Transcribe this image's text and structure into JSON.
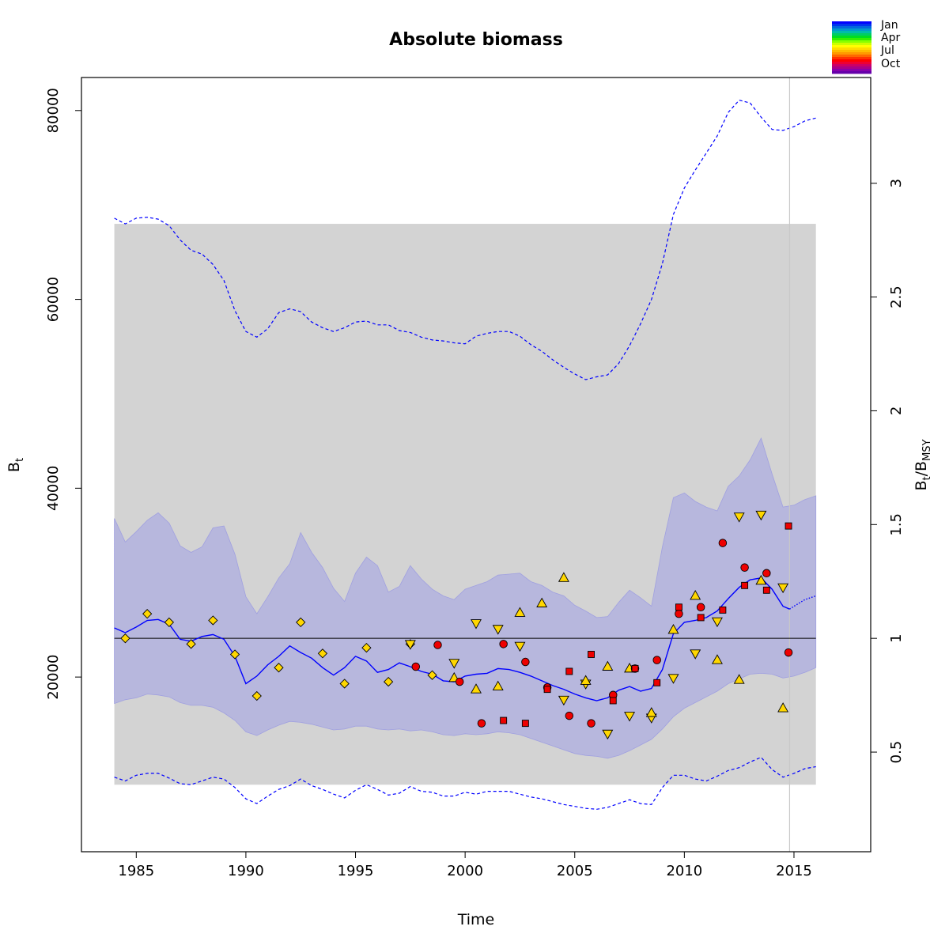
{
  "chart_data": {
    "type": "scatter",
    "title": "Absolute biomass",
    "xlabel": "Time",
    "ylabel_main": "B",
    "ylabel_sub": "t",
    "y2label_main": "B",
    "y2label_sub1": "t",
    "y2label_sep": "/B",
    "y2label_sub2": "MSY",
    "xlim": [
      1982.5,
      2018.5
    ],
    "ylim": [
      1500,
      83500
    ],
    "x_ticks": [
      1985,
      1990,
      1995,
      2000,
      2005,
      2010,
      2015
    ],
    "x_tick_labels": [
      "1985",
      "1990",
      "1995",
      "2000",
      "2005",
      "2010",
      "2015"
    ],
    "y_ticks": [
      20000,
      40000,
      60000,
      80000
    ],
    "y_tick_labels": [
      "20000",
      "40000",
      "60000",
      "80000"
    ],
    "bmsy": 24100,
    "y2_ticks": [
      0.5,
      1,
      1.5,
      2,
      2.5,
      3
    ],
    "y2_tick_labels": [
      "0.5",
      "1",
      "1.5",
      "2",
      "2.5",
      "3"
    ],
    "last_obs_year": 2014.8,
    "bmsy_ci_band": {
      "x0": 1984,
      "x1": 2016,
      "lower": 8600,
      "upper": 68000,
      "color": "#d3d3d3"
    },
    "colors": {
      "estimate_line": "#0000ff",
      "ci_fill": "rgba(160,160,230,0.55)",
      "ci_edge": "#a0a0e0",
      "reference_line": "#000000",
      "last_obs_line": "#c8c8c8",
      "obs_yellow": "#ffd700",
      "obs_red": "#ee0000"
    },
    "estimate": {
      "x": [
        1984,
        1984.5,
        1985,
        1985.5,
        1986,
        1986.5,
        1987,
        1987.5,
        1988,
        1988.5,
        1989,
        1989.5,
        1990,
        1990.5,
        1991,
        1991.5,
        1992,
        1992.5,
        1993,
        1993.5,
        1994,
        1994.5,
        1995,
        1995.5,
        1996,
        1996.5,
        1997,
        1997.5,
        1998,
        1998.5,
        1999,
        1999.5,
        2000,
        2000.5,
        2001,
        2001.5,
        2002,
        2002.5,
        2003,
        2003.5,
        2004,
        2004.5,
        2005,
        2005.5,
        2006,
        2006.5,
        2007,
        2007.5,
        2008,
        2008.5,
        2009,
        2009.5,
        2010,
        2010.5,
        2011,
        2011.5,
        2012,
        2012.5,
        2013,
        2013.5,
        2014,
        2014.5,
        2014.8
      ],
      "y": [
        25200,
        24700,
        25300,
        26000,
        26100,
        25600,
        24000,
        23800,
        24300,
        24500,
        24000,
        22200,
        19300,
        20100,
        21300,
        22200,
        23300,
        22600,
        22000,
        21000,
        20200,
        21000,
        22200,
        21700,
        20500,
        20800,
        21500,
        21100,
        20600,
        20300,
        19600,
        19500,
        20100,
        20300,
        20400,
        20900,
        20800,
        20500,
        20100,
        19600,
        19100,
        18700,
        18200,
        17800,
        17500,
        17800,
        18600,
        19000,
        18500,
        18800,
        20800,
        24600,
        25800,
        26000,
        26300,
        27000,
        28300,
        29500,
        30300,
        30500,
        29300,
        27500,
        27200
      ]
    },
    "forecast": {
      "x": [
        2014.8,
        2015,
        2015.5,
        2016
      ],
      "y": [
        27200,
        27500,
        28200,
        28600
      ]
    },
    "ci_band": {
      "x": [
        1984,
        1984.5,
        1985,
        1985.5,
        1986,
        1986.5,
        1987,
        1987.5,
        1988,
        1988.5,
        1989,
        1989.5,
        1990,
        1990.5,
        1991,
        1991.5,
        1992,
        1992.5,
        1993,
        1993.5,
        1994,
        1994.5,
        1995,
        1995.5,
        1996,
        1996.5,
        1997,
        1997.5,
        1998,
        1998.5,
        1999,
        1999.5,
        2000,
        2000.5,
        2001,
        2001.5,
        2002,
        2002.5,
        2003,
        2003.5,
        2004,
        2004.5,
        2005,
        2005.5,
        2006,
        2006.5,
        2007,
        2007.5,
        2008,
        2008.5,
        2009,
        2009.5,
        2010,
        2010.5,
        2011,
        2011.5,
        2012,
        2012.5,
        2013,
        2013.5,
        2014,
        2014.5,
        2015,
        2015.5,
        2016
      ],
      "upper": [
        36800,
        34300,
        35400,
        36600,
        37400,
        36300,
        33900,
        33200,
        33800,
        35800,
        36000,
        33000,
        28500,
        26700,
        28500,
        30500,
        32000,
        35300,
        33200,
        31600,
        29400,
        28000,
        31000,
        32700,
        31800,
        29000,
        29600,
        31800,
        30400,
        29300,
        28600,
        28200,
        29300,
        29700,
        30100,
        30800,
        30900,
        31000,
        30100,
        29700,
        29000,
        28600,
        27600,
        27000,
        26300,
        26400,
        27900,
        29200,
        28400,
        27500,
        33800,
        39000,
        39500,
        38600,
        38000,
        37600,
        40200,
        41300,
        43000,
        45300,
        41500,
        38000,
        38200,
        38800,
        39200
      ],
      "lower": [
        17200,
        17600,
        17800,
        18200,
        18100,
        17900,
        17300,
        17000,
        17000,
        16800,
        16200,
        15400,
        14200,
        13800,
        14400,
        14900,
        15300,
        15200,
        15000,
        14700,
        14400,
        14500,
        14800,
        14800,
        14500,
        14400,
        14500,
        14300,
        14400,
        14200,
        13900,
        13800,
        14000,
        13900,
        14000,
        14200,
        14100,
        13900,
        13500,
        13100,
        12700,
        12300,
        11900,
        11700,
        11600,
        11400,
        11700,
        12200,
        12800,
        13400,
        14500,
        15800,
        16700,
        17300,
        17900,
        18500,
        19300,
        19800,
        20300,
        20400,
        20300,
        19900,
        20100,
        20500,
        21000
      ]
    },
    "upper_dashed": {
      "x": [
        1984,
        1984.5,
        1985,
        1985.5,
        1986,
        1986.5,
        1987,
        1987.5,
        1988,
        1988.5,
        1989,
        1989.5,
        1990,
        1990.5,
        1991,
        1991.5,
        1992,
        1992.5,
        1993,
        1993.5,
        1994,
        1994.5,
        1995,
        1995.5,
        1996,
        1996.5,
        1997,
        1997.5,
        1998,
        1998.5,
        1999,
        1999.5,
        2000,
        2000.5,
        2001,
        2001.5,
        2002,
        2002.5,
        2003,
        2003.5,
        2004,
        2004.5,
        2005,
        2005.5,
        2006,
        2006.5,
        2007,
        2007.5,
        2008,
        2008.5,
        2009,
        2009.5,
        2010,
        2010.5,
        2011,
        2011.5,
        2012,
        2012.5,
        2013,
        2013.5,
        2014,
        2014.5,
        2015,
        2015.5,
        2016
      ],
      "y": [
        68600,
        68000,
        68600,
        68700,
        68500,
        67800,
        66300,
        65200,
        64800,
        63700,
        62000,
        58800,
        56600,
        56000,
        56900,
        58600,
        59000,
        58700,
        57600,
        57000,
        56600,
        57000,
        57600,
        57700,
        57300,
        57300,
        56700,
        56500,
        56000,
        55700,
        55600,
        55400,
        55300,
        56100,
        56400,
        56600,
        56600,
        56100,
        55200,
        54500,
        53600,
        52800,
        52100,
        51500,
        51800,
        52000,
        53200,
        55100,
        57400,
        60000,
        63800,
        69000,
        71800,
        73700,
        75500,
        77300,
        79800,
        81100,
        80800,
        79300,
        78000,
        77900,
        78300,
        78900,
        79200
      ]
    },
    "lower_dashed": {
      "x": [
        1984,
        1984.5,
        1985,
        1985.5,
        1986,
        1986.5,
        1987,
        1987.5,
        1988,
        1988.5,
        1989,
        1989.5,
        1990,
        1990.5,
        1991,
        1991.5,
        1992,
        1992.5,
        1993,
        1993.5,
        1994,
        1994.5,
        1995,
        1995.5,
        1996,
        1996.5,
        1997,
        1997.5,
        1998,
        1998.5,
        1999,
        1999.5,
        2000,
        2000.5,
        2001,
        2001.5,
        2002,
        2002.5,
        2003,
        2003.5,
        2004,
        2004.5,
        2005,
        2005.5,
        2006,
        2006.5,
        2007,
        2007.5,
        2008,
        2008.5,
        2009,
        2009.5,
        2010,
        2010.5,
        2011,
        2011.5,
        2012,
        2012.5,
        2013,
        2013.5,
        2014,
        2014.5,
        2015,
        2015.5,
        2016
      ],
      "y": [
        9400,
        9000,
        9600,
        9800,
        9800,
        9300,
        8700,
        8600,
        9000,
        9400,
        9200,
        8300,
        7100,
        6600,
        7400,
        8100,
        8500,
        9200,
        8500,
        8100,
        7600,
        7200,
        8000,
        8600,
        8100,
        7500,
        7700,
        8400,
        7900,
        7800,
        7400,
        7400,
        7800,
        7600,
        7900,
        7900,
        7900,
        7600,
        7300,
        7100,
        6800,
        6500,
        6300,
        6100,
        6000,
        6200,
        6600,
        7000,
        6600,
        6500,
        8300,
        9600,
        9600,
        9200,
        9000,
        9500,
        10100,
        10400,
        11000,
        11500,
        10200,
        9400,
        9800,
        10300,
        10500
      ]
    },
    "observations": [
      {
        "series": "diamond",
        "color": "yellow",
        "x": [
          1984.5,
          1985.5,
          1986.5,
          1987.5,
          1988.5,
          1989.5,
          1990.5,
          1991.5,
          1992.5,
          1993.5,
          1994.5,
          1995.5,
          1996.5,
          1997.5,
          1998.5
        ],
        "y": [
          24100,
          26700,
          25800,
          23500,
          26000,
          22400,
          18000,
          21000,
          25800,
          22500,
          19300,
          23100,
          19500,
          23500,
          20200
        ]
      },
      {
        "series": "triangle-down",
        "color": "yellow",
        "x": [
          1997.5,
          1999.5,
          2000.5,
          2001.5,
          2002.5,
          2004.5,
          2005.5,
          2006.5,
          2007.5,
          2008.5,
          2009.5,
          2010.5,
          2011.5,
          2012.5,
          2013.5,
          2014.5
        ],
        "y": [
          23500,
          21500,
          25700,
          25100,
          23300,
          17600,
          19300,
          14000,
          15900,
          15700,
          19900,
          22500,
          25900,
          37000,
          37200,
          29500
        ]
      },
      {
        "series": "triangle-up",
        "color": "yellow",
        "x": [
          1999.5,
          2000.5,
          2001.5,
          2002.5,
          2003.5,
          2004.5,
          2005.5,
          2006.5,
          2007.5,
          2008.5,
          2009.5,
          2010.5,
          2011.5,
          2012.5,
          2013.5,
          2014.5
        ],
        "y": [
          19900,
          18700,
          19000,
          26800,
          27800,
          30500,
          19600,
          21100,
          20900,
          16200,
          25000,
          28600,
          21800,
          19700,
          30200,
          16700
        ]
      },
      {
        "series": "circle",
        "color": "red",
        "x": [
          1997.75,
          1998.75,
          1999.75,
          2000.75,
          2001.75,
          2002.75,
          2003.75,
          2004.75,
          2005.75,
          2006.75,
          2007.75,
          2008.75,
          2009.75,
          2010.75,
          2011.75,
          2012.75,
          2013.75,
          2014.75
        ],
        "y": [
          21100,
          23400,
          19500,
          15100,
          23500,
          21600,
          18900,
          15900,
          15100,
          18100,
          20900,
          21800,
          26700,
          27400,
          34200,
          31600,
          31000,
          22600
        ]
      },
      {
        "series": "square",
        "color": "red",
        "x": [
          2001.75,
          2002.75,
          2003.75,
          2004.75,
          2005.75,
          2006.75,
          2007.75,
          2008.75,
          2009.75,
          2010.75,
          2011.75,
          2012.75,
          2013.75,
          2014.75
        ],
        "y": [
          15400,
          15100,
          18700,
          20600,
          22400,
          17500,
          20900,
          19400,
          27400,
          26300,
          27100,
          29700,
          29200,
          36000
        ]
      }
    ]
  },
  "legend": {
    "labels": [
      "Jan",
      "Apr",
      "Jul",
      "Oct"
    ],
    "palette": [
      "#0000ff",
      "#0033ee",
      "#0066dd",
      "#0099cc",
      "#00bbaa",
      "#00cc66",
      "#00dd22",
      "#33ee00",
      "#88ff00",
      "#ccff00",
      "#ffff00",
      "#ffdd00",
      "#ffbb00",
      "#ff9900",
      "#ff6600",
      "#ff3300",
      "#ff0000",
      "#ee0033",
      "#cc0066",
      "#aa0088",
      "#8800aa",
      "#6600aa"
    ]
  }
}
